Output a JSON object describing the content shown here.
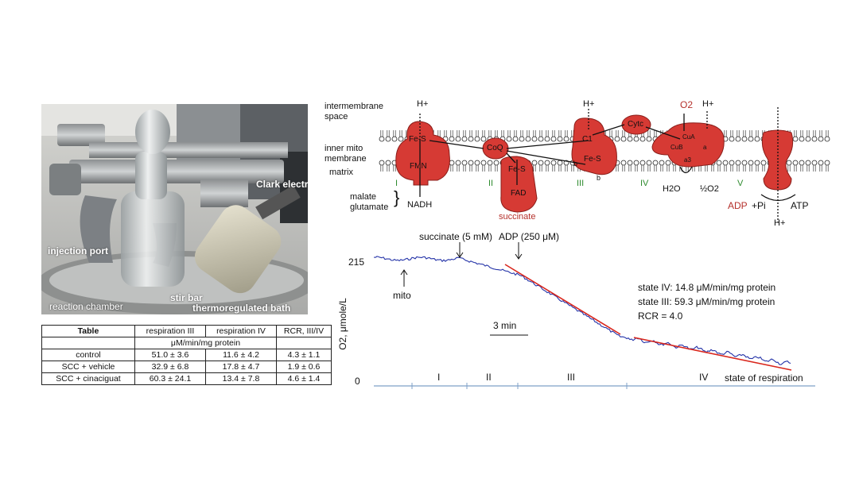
{
  "photo": {
    "labels": {
      "clark": "Clark electrode",
      "injection": "injection port",
      "stir": "stir bar",
      "chamber": "reaction chamber",
      "bath": "thermoregulated bath"
    }
  },
  "table": {
    "headers": [
      "Table",
      "respiration III",
      "respiration IV",
      "RCR, III/IV"
    ],
    "units": "μM/min/mg protein",
    "rows": [
      [
        "control",
        "51.0 ± 3.6",
        "11.6 ± 4.2",
        "4.3 ± 1.1"
      ],
      [
        "SCC + vehicle",
        "32.9 ± 6.8",
        "17.8 ± 4.7",
        "1.9 ± 0.6"
      ],
      [
        "SCC + cinaciguat",
        "60.3 ± 24.1",
        "13.4 ± 7.8",
        "4.6 ± 1.4"
      ]
    ]
  },
  "diagram": {
    "intermembrane": [
      "intermembrane",
      "space"
    ],
    "inner": [
      "inner mito",
      "membrane"
    ],
    "matrix": "matrix",
    "malate": [
      "malate",
      "glutamate"
    ],
    "complexes": [
      "I",
      "II",
      "III",
      "IV",
      "V"
    ],
    "labels": {
      "h": "H+",
      "fes": "Fe-S",
      "fmn": "FMN",
      "nadh": "NADH",
      "coq": "CoQ",
      "fad": "FAD",
      "succinate": "succinate",
      "c1": "C1",
      "b": "b",
      "cytc": "Cytc",
      "o2": "O2",
      "cua": "CuA",
      "cub": "CuB",
      "a": "a",
      "a3": "a3",
      "h2o": "H2O",
      "halfo2": "½O2",
      "adp": "ADP",
      "pi": "+Pi",
      "atp": "ATP"
    },
    "colors": {
      "protein": "#d63a34",
      "roman": "#2e8a2e",
      "highlight": "#b5302b"
    }
  },
  "chart_data": {
    "type": "line",
    "ylabel": "O2, μmole/L",
    "xlabel": "state of respiration",
    "yticks": [
      "215",
      "0"
    ],
    "phases": [
      "I",
      "II",
      "III",
      "IV"
    ],
    "annotations": {
      "succinate": "succinate (5 mM)",
      "adp": "ADP (250 μM)",
      "mito": "mito",
      "scale": "3 min",
      "state4": "state IV: 14.8 μM/min/mg protein",
      "state3": "state III: 59.3 μM/min/mg protein",
      "rcr": "RCR = 4.0"
    },
    "colors": {
      "trace": "#2433a8",
      "fit": "#d9261c"
    }
  }
}
